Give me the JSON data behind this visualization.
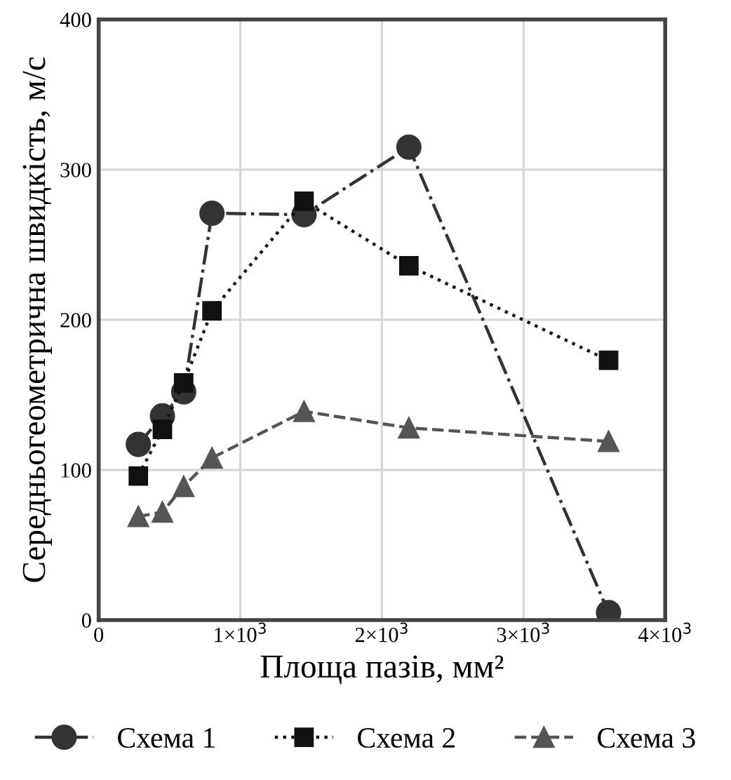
{
  "chart_data": {
    "type": "line",
    "xlabel": "Площа пазів, мм²",
    "ylabel": "Середньогеометрична швидкість, м/с",
    "xlim": [
      0,
      4000
    ],
    "ylim": [
      0,
      400
    ],
    "xticks": [
      0,
      {
        "value": 1000,
        "label": "1×10$^{3}$"
      },
      {
        "value": 2000,
        "label": "2×10$^{3}$"
      },
      {
        "value": 3000,
        "label": "3×10$^{3}$"
      },
      {
        "value": 4000,
        "label": "4×10$^{3}$"
      }
    ],
    "yticks": [
      0,
      100,
      200,
      300,
      400
    ],
    "grid": true,
    "legend": "bottom",
    "series": [
      {
        "name": "Схема 1",
        "color": "#333333",
        "marker": "circle",
        "line_style": "dashdot",
        "x": [
          280,
          450,
          600,
          800,
          1450,
          2190,
          3600
        ],
        "values": [
          117,
          136,
          152,
          271,
          270,
          315,
          5
        ]
      },
      {
        "name": "Схема 2",
        "color": "#111111",
        "marker": "square",
        "line_style": "dotted",
        "x": [
          280,
          450,
          600,
          800,
          1450,
          2190,
          3600
        ],
        "values": [
          96,
          127,
          158,
          206,
          279,
          236,
          173
        ]
      },
      {
        "name": "Схема 3",
        "color": "#555555",
        "marker": "triangle",
        "line_style": "dashed",
        "x": [
          280,
          450,
          600,
          800,
          1450,
          2190,
          3600
        ],
        "values": [
          69,
          72,
          89,
          108,
          139,
          128,
          119
        ]
      }
    ]
  }
}
